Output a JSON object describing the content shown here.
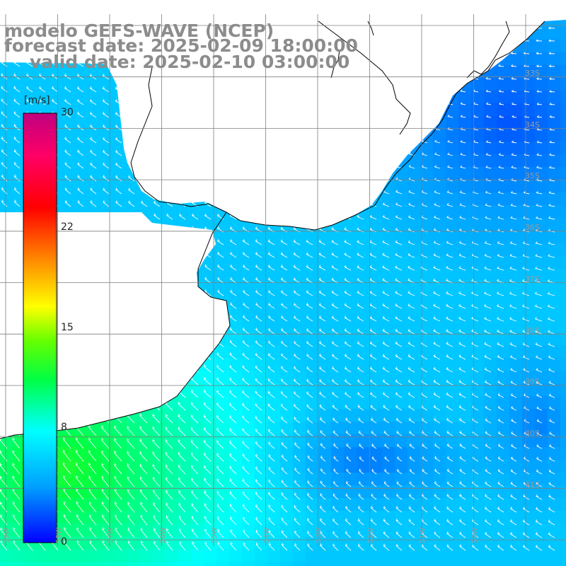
{
  "title": {
    "model": "modelo GEFS-WAVE (NCEP)",
    "forecast": "forecast date: 2025-02-09 18:00:00",
    "valid": "valid date: 2025-02-10 03:00:00"
  },
  "colorbar": {
    "unit": "[m/s]",
    "ticks": [
      {
        "value": 30,
        "label": "30"
      },
      {
        "value": 22,
        "label": "22"
      },
      {
        "value": 15,
        "label": "15"
      },
      {
        "value": 8,
        "label": "8"
      },
      {
        "value": 0,
        "label": "0"
      }
    ],
    "stops": [
      "#0000ff",
      "#00a0ff",
      "#00ffff",
      "#00ff44",
      "#66ff00",
      "#ffff00",
      "#ff8800",
      "#ff0000",
      "#ff0066",
      "#c00080"
    ]
  },
  "lat_labels": [
    "33S",
    "34S",
    "35S",
    "36S",
    "37S",
    "38S",
    "39S",
    "40S",
    "41S"
  ],
  "lon_labels": [
    "59W",
    "58W",
    "57W",
    "56W",
    "55W",
    "54W",
    "53W",
    "52W",
    "51W",
    "50W"
  ],
  "chart_data": {
    "type": "heatmap",
    "title": "modelo GEFS-WAVE (NCEP)",
    "subtitle": "forecast date: 2025-02-09 18:00:00 / valid date: 2025-02-10 03:00:00",
    "variable": "wind speed",
    "units": "[m/s]",
    "colorbar_range": [
      0,
      30
    ],
    "lon_range": [
      -59.5,
      -49.5
    ],
    "lat_range": [
      -32.0,
      -41.5
    ],
    "grid": true,
    "vectors": "white arrows showing wind direction, mostly pointing toward the west / south-west",
    "speed_regions": [
      {
        "region": "south-west, near the coast",
        "speed_m_s": [
          10,
          13
        ]
      },
      {
        "region": "Rio de la Plata mouth / centre",
        "speed_m_s": [
          6,
          8
        ]
      },
      {
        "region": "north-east, off the Brazilian coast",
        "speed_m_s": [
          2,
          4
        ]
      },
      {
        "region": "south-east",
        "speed_m_s": [
          3,
          5
        ]
      }
    ]
  }
}
